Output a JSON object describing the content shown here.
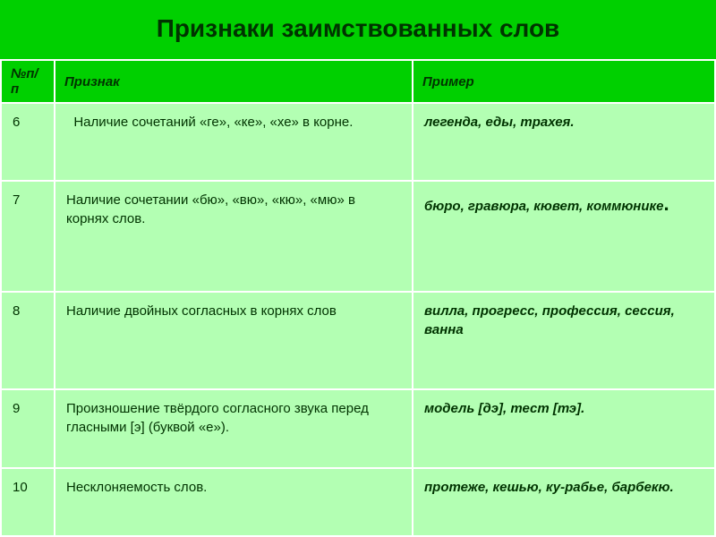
{
  "title": "Признаки заимствованных слов",
  "colors": {
    "header_bg": "#00d000",
    "cell_bg": "#b3ffb3",
    "text": "#003300",
    "border": "#ffffff"
  },
  "columns": {
    "num": "№п/п",
    "feature": "Признак",
    "example": "Пример"
  },
  "rows": [
    {
      "num": "6",
      "feature": "  Наличие сочетаний «ге», «ке», «хе» в корне.",
      "example": "легенда, еды, трахея."
    },
    {
      "num": "7",
      "feature": "Наличие сочетании «бю», «вю», «кю», «мю» в корнях слов.",
      "example": "бюро, гравюра, кювет, коммюнике"
    },
    {
      "num": "8",
      "feature": "Наличие двойных согласных в корнях слов",
      "example": "вилла, прогресс, профессия, сессия, ванна"
    },
    {
      "num": "9",
      "feature": "Произношение твёрдого согласного звука перед гласными [э] (буквой «е»).",
      "example": "модель [дэ], тест [тэ]."
    },
    {
      "num": "10",
      "feature": "Несклоняемость слов.",
      "example": "протеже, кешью, ку-рабье, барбекю."
    }
  ]
}
